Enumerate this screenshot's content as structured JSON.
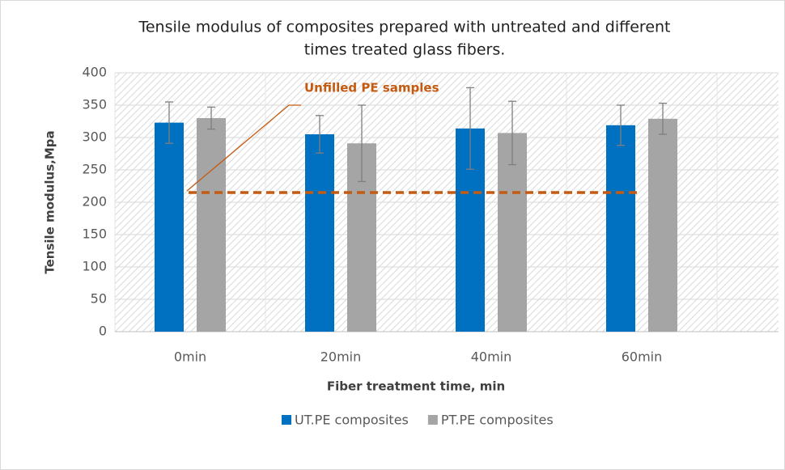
{
  "chart_data": {
    "type": "bar",
    "title": [
      "Tensile modulus of composites prepared with untreated and different",
      "times treated glass fibers."
    ],
    "x_label": "Fiber treatment time, min",
    "y_label": "Tensile modulus,Mpa",
    "categories": [
      "0min",
      "20min",
      "40min",
      "60min"
    ],
    "series": [
      {
        "name": "UT.PE composites",
        "color": "#0070c0",
        "values": [
          323,
          305,
          314,
          319
        ],
        "errors": [
          32,
          29,
          63,
          31
        ]
      },
      {
        "name": "PT.PE composites",
        "color": "#a5a5a5",
        "values": [
          330,
          291,
          307,
          329
        ],
        "errors": [
          17,
          59,
          49,
          24
        ]
      }
    ],
    "reference_line": {
      "value": 215,
      "label": "Unfilled PE samples",
      "color": "#c55a11"
    },
    "ylim": [
      0,
      400
    ],
    "yticks": [
      0,
      50,
      100,
      150,
      200,
      250,
      300,
      350,
      400
    ],
    "grid": true,
    "legend": "bottom"
  }
}
